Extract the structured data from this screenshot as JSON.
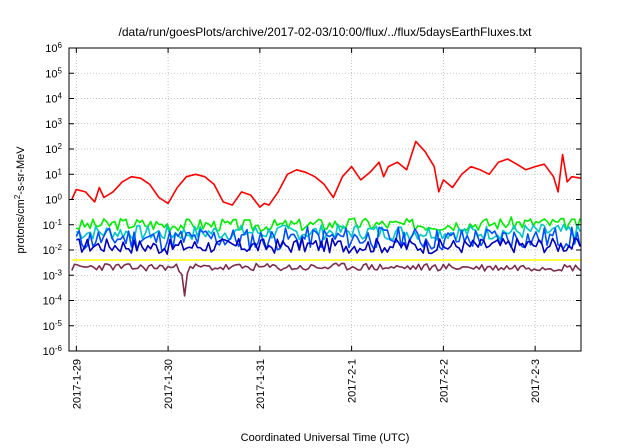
{
  "chart_data": {
    "type": "line",
    "title": "/data/run/goesPlots/archive/2017-02-03/10:00/flux/../flux/5daysEarthFluxes.txt",
    "xlabel": "Coordinated Universal Time (UTC)",
    "ylabel": {
      "pre": "protons/cm",
      "sup": "2",
      "post": "-s-sr-MeV"
    },
    "yscale": "log",
    "ylim_exp": [
      -6,
      6
    ],
    "xlim_days": [
      -0.08,
      5.5
    ],
    "grid": true,
    "legend": "none",
    "x_ticks": [
      {
        "label": "2017-1-29",
        "day": 0
      },
      {
        "label": "2017-1-30",
        "day": 1
      },
      {
        "label": "2017-1-31",
        "day": 2
      },
      {
        "label": "2017-2-1",
        "day": 3
      },
      {
        "label": "2017-2-2",
        "day": 4
      },
      {
        "label": "2017-2-3",
        "day": 5
      }
    ],
    "y_ticks": [
      {
        "base": "10",
        "exp": "-6",
        "e": -6
      },
      {
        "base": "10",
        "exp": "-5",
        "e": -5
      },
      {
        "base": "10",
        "exp": "-4",
        "e": -4
      },
      {
        "base": "10",
        "exp": "-3",
        "e": -3
      },
      {
        "base": "10",
        "exp": "-2",
        "e": -2
      },
      {
        "base": "10",
        "exp": "-1",
        "e": -1
      },
      {
        "base": "10",
        "exp": "0",
        "e": 0
      },
      {
        "base": "10",
        "exp": "1",
        "e": 1
      },
      {
        "base": "10",
        "exp": "2",
        "e": 2
      },
      {
        "base": "10",
        "exp": "3",
        "e": 3
      },
      {
        "base": "10",
        "exp": "4",
        "e": 4
      },
      {
        "base": "10",
        "exp": "5",
        "e": 5
      },
      {
        "base": "10",
        "exp": "6",
        "e": 6
      }
    ],
    "series": [
      {
        "color": "#ff0000",
        "x": [
          -0.05,
          0.0,
          0.1,
          0.2,
          0.25,
          0.3,
          0.4,
          0.5,
          0.6,
          0.7,
          0.8,
          0.9,
          1.0,
          1.1,
          1.2,
          1.3,
          1.4,
          1.5,
          1.6,
          1.7,
          1.8,
          1.9,
          2.0,
          2.05,
          2.1,
          2.2,
          2.3,
          2.4,
          2.5,
          2.6,
          2.7,
          2.8,
          2.9,
          3.0,
          3.1,
          3.2,
          3.3,
          3.35,
          3.4,
          3.5,
          3.6,
          3.7,
          3.8,
          3.9,
          3.95,
          4.0,
          4.1,
          4.2,
          4.3,
          4.4,
          4.5,
          4.6,
          4.7,
          4.8,
          4.9,
          5.0,
          5.1,
          5.2,
          5.25,
          5.3,
          5.35,
          5.4,
          5.5
        ],
        "y": [
          1.0,
          2.5,
          2.0,
          0.8,
          3.0,
          1.2,
          2.0,
          5.0,
          8.0,
          7.0,
          4.0,
          1.2,
          0.7,
          3.0,
          8.0,
          10.0,
          8.0,
          4.0,
          0.8,
          0.6,
          2.0,
          1.5,
          0.5,
          0.7,
          0.6,
          2.0,
          10.0,
          15.0,
          12.0,
          8.0,
          4.0,
          1.2,
          8.0,
          20.0,
          6.0,
          12.0,
          30.0,
          8.0,
          20.0,
          30.0,
          15.0,
          200.0,
          80.0,
          20.0,
          2.0,
          6.0,
          3.0,
          10.0,
          20.0,
          15.0,
          10.0,
          30.0,
          40.0,
          25.0,
          15.0,
          20.0,
          25.0,
          8.0,
          2.0,
          60.0,
          5.0,
          8.0,
          7.0
        ]
      },
      {
        "color": "#00ee00",
        "x": [
          0.0,
          0.5,
          1.0,
          1.5,
          2.0,
          2.5,
          3.0,
          3.5,
          4.0,
          4.5,
          5.0,
          5.5
        ],
        "y": [
          0.09,
          0.11,
          0.1,
          0.1,
          0.09,
          0.1,
          0.11,
          0.1,
          0.1,
          0.11,
          0.12,
          0.1
        ],
        "jitter": 0.25,
        "seed": 3
      },
      {
        "color": "#00c8c8",
        "x": [
          0.0,
          0.5,
          1.0,
          1.5,
          2.0,
          2.5,
          3.0,
          3.5,
          4.0,
          4.5,
          5.0,
          5.5
        ],
        "y": [
          0.05,
          0.05,
          0.045,
          0.05,
          0.05,
          0.05,
          0.055,
          0.05,
          0.05,
          0.05,
          0.055,
          0.05
        ],
        "jitter": 0.3,
        "seed": 7
      },
      {
        "color": "#0050ff",
        "x": [
          0.0,
          0.5,
          1.0,
          1.5,
          2.0,
          2.5,
          3.0,
          3.5,
          4.0,
          4.5,
          5.0,
          5.5
        ],
        "y": [
          0.025,
          0.03,
          0.025,
          0.03,
          0.025,
          0.03,
          0.03,
          0.03,
          0.025,
          0.03,
          0.03,
          0.03
        ],
        "jitter": 0.45,
        "seed": 11
      },
      {
        "color": "#0000c0",
        "x": [
          0.0,
          0.5,
          1.0,
          1.5,
          2.0,
          2.5,
          3.0,
          3.5,
          4.0,
          4.5,
          5.0,
          5.5
        ],
        "y": [
          0.015,
          0.015,
          0.013,
          0.015,
          0.014,
          0.015,
          0.015,
          0.015,
          0.014,
          0.015,
          0.016,
          0.015
        ],
        "jitter": 0.3,
        "seed": 17
      },
      {
        "color": "#ffff00",
        "x": [
          -0.05,
          5.5
        ],
        "y": [
          0.004,
          0.004
        ]
      },
      {
        "color": "#7d2d4b",
        "x": [
          -0.05,
          0.3,
          0.6,
          0.9,
          1.1,
          1.15,
          1.18,
          1.21,
          1.3,
          1.6,
          2.0,
          2.5,
          3.0,
          3.5,
          4.0,
          4.5,
          5.0,
          5.5
        ],
        "y": [
          0.002,
          0.0022,
          0.002,
          0.0021,
          0.002,
          0.0015,
          0.0002,
          0.0015,
          0.0021,
          0.002,
          0.0021,
          0.002,
          0.0022,
          0.002,
          0.0021,
          0.002,
          0.0021,
          0.002
        ],
        "jitter": 0.15,
        "seed": 23
      }
    ]
  }
}
